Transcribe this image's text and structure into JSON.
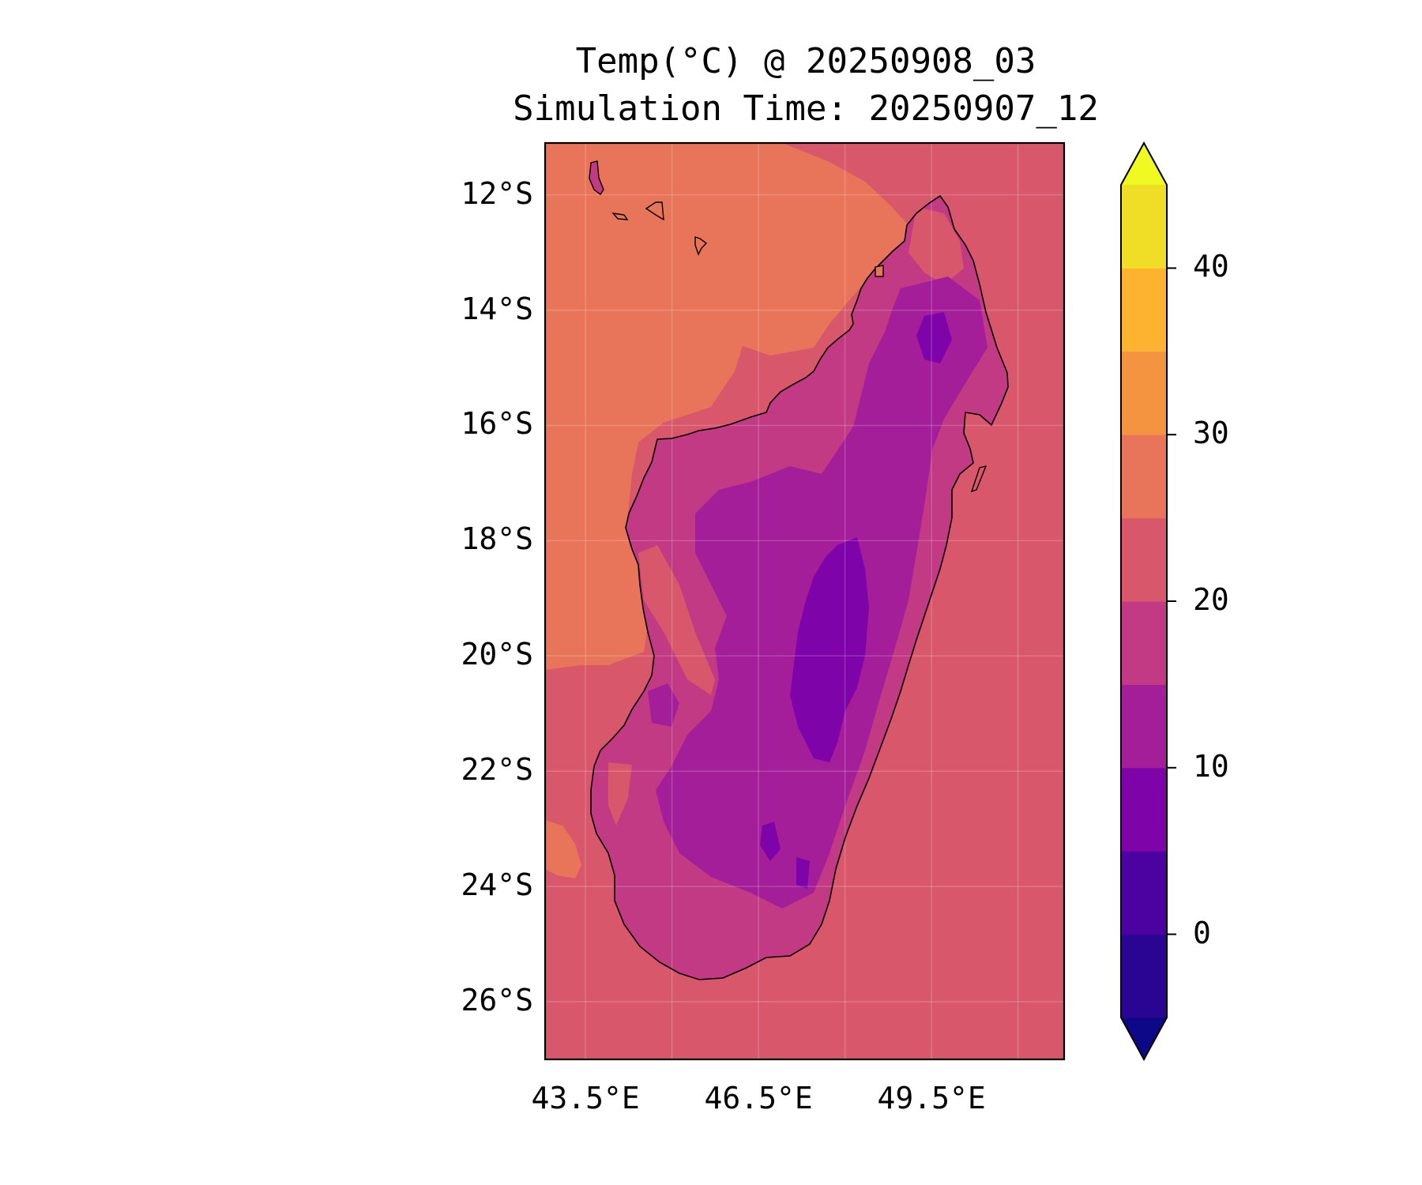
{
  "title": {
    "line1": "Temp(°C) @ 20250908_03",
    "line2": "Simulation Time: 20250907_12"
  },
  "map": {
    "region": "Madagascar",
    "lon_range": [
      42.8,
      51.8
    ],
    "lat_range": [
      -27.0,
      -11.1
    ],
    "y_ticks": [
      {
        "label": "12°S",
        "lat": -12
      },
      {
        "label": "14°S",
        "lat": -14
      },
      {
        "label": "16°S",
        "lat": -16
      },
      {
        "label": "18°S",
        "lat": -18
      },
      {
        "label": "20°S",
        "lat": -20
      },
      {
        "label": "22°S",
        "lat": -22
      },
      {
        "label": "24°S",
        "lat": -24
      },
      {
        "label": "26°S",
        "lat": -26
      }
    ],
    "x_ticks": [
      {
        "label": "43.5°E",
        "lon": 43.5
      },
      {
        "label": "46.5°E",
        "lon": 46.5
      },
      {
        "label": "49.5°E",
        "lon": 49.5
      }
    ]
  },
  "colorbar": {
    "levels": [
      -5,
      0,
      5,
      10,
      15,
      20,
      25,
      30,
      35,
      40,
      45
    ],
    "colors": [
      "#0d0887",
      "#2a0593",
      "#4c02a1",
      "#7e03a8",
      "#a41e9a",
      "#c13a83",
      "#d8576b",
      "#e8755a",
      "#f59440",
      "#fdb32f",
      "#f0dd25",
      "#f0f921"
    ],
    "ticks": [
      {
        "label": "0",
        "value": 0
      },
      {
        "label": "10",
        "value": 10
      },
      {
        "label": "20",
        "value": 20
      },
      {
        "label": "30",
        "value": 30
      },
      {
        "label": "40",
        "value": 40
      }
    ],
    "extend": "both"
  },
  "chart_data": {
    "type": "heatmap",
    "variable": "Temp(°C)",
    "title": "Temp(°C) @ 20250908_03",
    "subtitle": "Simulation Time: 20250907_12",
    "xlim": [
      42.8,
      51.8
    ],
    "ylim": [
      -27.0,
      -11.1
    ],
    "grid": true,
    "legend": "colorbar-right",
    "field_summary": {
      "open_ocean_east_and_south": 22.5,
      "mozambique_channel_northwest": 27.5,
      "island_coastal_lowlands": 17.5,
      "island_interior": 12.5,
      "central_highlands_min": 7.5
    }
  }
}
